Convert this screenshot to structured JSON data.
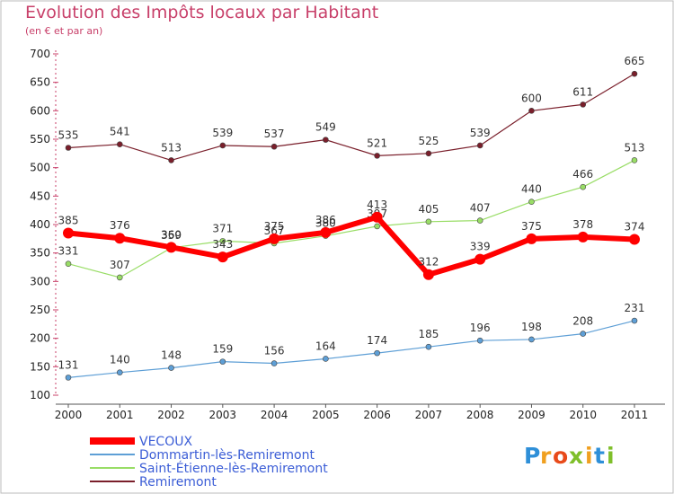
{
  "chart_data": {
    "type": "line",
    "title": "Evolution des Impôts locaux par Habitant",
    "subtitle": "(en € et par an)",
    "xlabel": "",
    "ylabel": "",
    "categories": [
      "2000",
      "2001",
      "2002",
      "2003",
      "2004",
      "2005",
      "2006",
      "2007",
      "2008",
      "2009",
      "2010",
      "2011"
    ],
    "ylim": [
      100,
      700
    ],
    "yticks": [
      100,
      150,
      200,
      250,
      300,
      350,
      400,
      450,
      500,
      550,
      600,
      650,
      700
    ],
    "grid": false,
    "legend_position": "bottom-left",
    "series": [
      {
        "name": "Remiremont",
        "color": "#7a1f2b",
        "values": [
          535,
          541,
          513,
          539,
          537,
          549,
          521,
          525,
          539,
          600,
          611,
          665
        ]
      },
      {
        "name": "Saint-Étienne-lès-Remiremont",
        "color": "#99dd66",
        "values": [
          331,
          307,
          359,
          371,
          367,
          380,
          397,
          405,
          407,
          440,
          466,
          513
        ]
      },
      {
        "name": "Dommartin-lès-Remiremont",
        "color": "#5e9fd6",
        "values": [
          131,
          140,
          148,
          159,
          156,
          164,
          174,
          185,
          196,
          198,
          208,
          231
        ]
      },
      {
        "name": "VECOUX",
        "color": "#ff0000",
        "values": [
          385,
          376,
          360,
          343,
          375,
          386,
          413,
          312,
          339,
          375,
          378,
          374
        ]
      }
    ],
    "legend": [
      "VECOUX",
      "Dommartin-lès-Remiremont",
      "Saint-Étienne-lès-Remiremont",
      "Remiremont"
    ]
  },
  "logo": {
    "letters": [
      "P",
      "r",
      "o",
      "x",
      "i",
      "t",
      "i"
    ],
    "colors": [
      "#2e8fd8",
      "#f0a020",
      "#e84a1a",
      "#7fbf2a",
      "#f0a020",
      "#2e8fd8",
      "#7fbf2a"
    ]
  }
}
